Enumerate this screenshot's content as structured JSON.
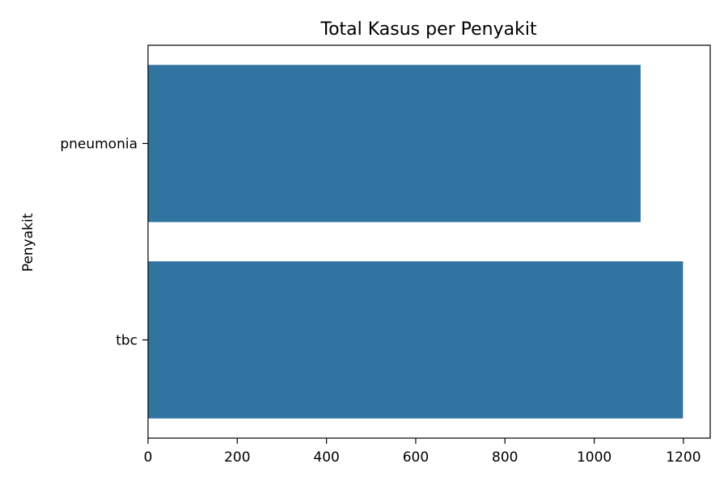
{
  "chart_data": {
    "type": "bar",
    "orientation": "horizontal",
    "title": "Total Kasus per Penyakit",
    "xlabel": "",
    "ylabel": "Penyakit",
    "categories": [
      "pneumonia",
      "tbc"
    ],
    "values": [
      1104,
      1199
    ],
    "xlim": [
      0,
      1260
    ],
    "xticks": [
      0,
      200,
      400,
      600,
      800,
      1000,
      1200
    ],
    "xtick_labels": [
      "0",
      "200",
      "400",
      "600",
      "800",
      "1000",
      "1200"
    ],
    "grid": false,
    "legend": "none",
    "bar_color": "#3274a1"
  }
}
